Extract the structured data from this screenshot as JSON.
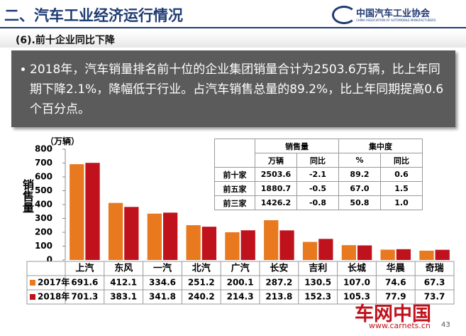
{
  "header": {
    "title": "二、汽车工业经济运行情况",
    "logo_name": "中国汽车工业协会",
    "logo_subtitle": "CHINA ASSOCIATION OF AUTOMOBILE MANUFACTURERS"
  },
  "section_title": "(6).前十企业同比下降",
  "summary": "2018年，汽车销量排名前十位的企业集团销量合计为2503.6万辆，比上年同期下降2.1%，降幅低于行业。占汽车销售总量的89.2%，比上年同期提高0.6个百分点。",
  "chart_data": {
    "type": "bar",
    "y_label": "销售量",
    "unit_label": "（万辆）",
    "categories": [
      "上汽",
      "东风",
      "一汽",
      "北汽",
      "广汽",
      "长安",
      "吉利",
      "长城",
      "华晨",
      "奇瑞"
    ],
    "series": [
      {
        "name": "2017年",
        "color": "#e8791f",
        "values": [
          691.6,
          412.1,
          334.6,
          251.2,
          200.1,
          287.2,
          130.5,
          107.0,
          74.6,
          67.3
        ],
        "value_labels": [
          "691.6",
          "412.1",
          "334.6",
          "251.2",
          "200.1",
          "287.2",
          "130.5",
          "107.0",
          "74.6",
          "67.3"
        ]
      },
      {
        "name": "2018年",
        "color": "#c0121c",
        "values": [
          701.3,
          383.1,
          341.8,
          240.2,
          214.3,
          213.8,
          152.3,
          105.3,
          77.9,
          73.7
        ],
        "value_labels": [
          "701.3",
          "383.1",
          "341.8",
          "240.2",
          "214.3",
          "213.8",
          "152.3",
          "105.3",
          "77.9",
          "73.7"
        ]
      }
    ],
    "ylim": [
      0,
      800
    ],
    "yticks": [
      0,
      100,
      200,
      300,
      400,
      500,
      600,
      700,
      800
    ]
  },
  "summary_table": {
    "group_headers": [
      "销售量",
      "集中度"
    ],
    "sub_headers": [
      "万辆",
      "同比",
      "%",
      "同比"
    ],
    "rows": [
      [
        "前十家",
        "2503.6",
        "-2.1",
        "89.2",
        "0.6"
      ],
      [
        "前五家",
        "1880.7",
        "-0.5",
        "67.0",
        "1.5"
      ],
      [
        "前三家",
        "1426.2",
        "-0.8",
        "50.8",
        "1.0"
      ]
    ]
  },
  "watermark": {
    "name": "车网中国",
    "url": "www.carnets.cn"
  },
  "page_number": "43"
}
